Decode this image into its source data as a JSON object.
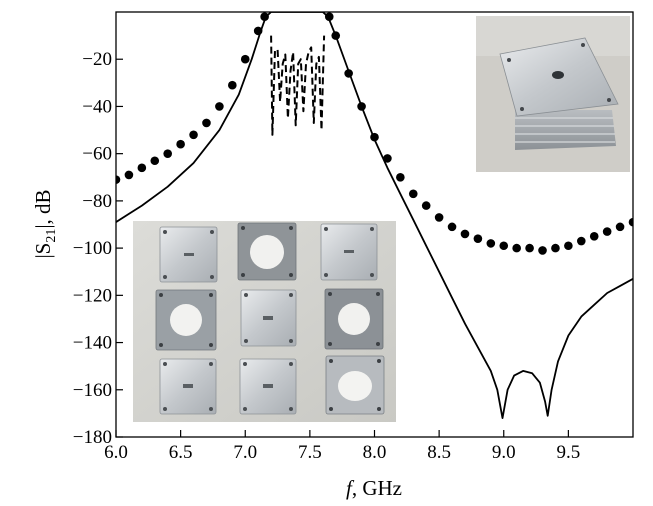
{
  "chart_data": {
    "type": "line",
    "title": "",
    "xlabel": "f, GHz",
    "xlabel_var": "f",
    "xlabel_unit": ", GHz",
    "ylabel": "|S21|, dB",
    "ylabel_pre": "|S",
    "ylabel_sub": "21",
    "ylabel_post": "|, dB",
    "xlim": [
      6.0,
      10.0
    ],
    "ylim": [
      -180,
      0
    ],
    "grid": false,
    "legend": "none",
    "x_ticks": [
      {
        "value": 6.0,
        "label": "6.0"
      },
      {
        "value": 6.5,
        "label": "6.5"
      },
      {
        "value": 7.0,
        "label": "7.0"
      },
      {
        "value": 7.5,
        "label": "7.5"
      },
      {
        "value": 8.0,
        "label": "8.0"
      },
      {
        "value": 8.5,
        "label": "8.5"
      },
      {
        "value": 9.0,
        "label": "9.0"
      },
      {
        "value": 9.5,
        "label": "9.5"
      }
    ],
    "y_ticks": [
      {
        "value": -20,
        "label": "−20"
      },
      {
        "value": -40,
        "label": "−40"
      },
      {
        "value": -60,
        "label": "−60"
      },
      {
        "value": -80,
        "label": "−80"
      },
      {
        "value": -100,
        "label": "−100"
      },
      {
        "value": -120,
        "label": "−120"
      },
      {
        "value": -140,
        "label": "−140"
      },
      {
        "value": -160,
        "label": "−160"
      },
      {
        "value": -180,
        "label": "−180"
      }
    ],
    "series": [
      {
        "style": "solid",
        "color": "#000000",
        "x": [
          6.0,
          6.2,
          6.4,
          6.6,
          6.8,
          6.95,
          7.05,
          7.12,
          7.16,
          7.2,
          7.4,
          7.6,
          7.64,
          7.7,
          7.8,
          7.9,
          8.0,
          8.1,
          8.2,
          8.3,
          8.4,
          8.5,
          8.6,
          8.7,
          8.8,
          8.9,
          8.95,
          8.99,
          9.03,
          9.08,
          9.15,
          9.22,
          9.28,
          9.32,
          9.34,
          9.37,
          9.42,
          9.5,
          9.6,
          9.7,
          9.8,
          9.9,
          10.0
        ],
        "y": [
          -89,
          -82,
          -74,
          -64,
          -50,
          -35,
          -20,
          -8,
          -2,
          0,
          0,
          0,
          -2,
          -10,
          -25,
          -40,
          -54,
          -66,
          -77,
          -88,
          -99,
          -110,
          -121,
          -132,
          -142,
          -152,
          -160,
          -172,
          -160,
          -154,
          -152,
          -153,
          -157,
          -165,
          -171,
          -160,
          -148,
          -137,
          -129,
          -124,
          -119,
          -116,
          -113
        ]
      },
      {
        "style": "dotted",
        "color": "#000000",
        "x": [
          6.0,
          6.1,
          6.2,
          6.3,
          6.4,
          6.5,
          6.6,
          6.7,
          6.8,
          6.9,
          7.0,
          7.1,
          7.15,
          7.65,
          7.7,
          7.8,
          7.9,
          8.0,
          8.1,
          8.2,
          8.3,
          8.4,
          8.5,
          8.6,
          8.7,
          8.8,
          8.9,
          9.0,
          9.1,
          9.2,
          9.3,
          9.4,
          9.5,
          9.6,
          9.7,
          9.8,
          9.9,
          10.0
        ],
        "y": [
          -71,
          -69,
          -66,
          -63,
          -60,
          -56,
          -52,
          -47,
          -40,
          -31,
          -20,
          -8,
          -2,
          -2,
          -10,
          -26,
          -40,
          -53,
          -62,
          -70,
          -77,
          -82,
          -87,
          -91,
          -94,
          -96,
          -98,
          -99,
          -100,
          -100,
          -101,
          -100,
          -99,
          -97,
          -95,
          -93,
          -91,
          -89
        ]
      },
      {
        "style": "dashed",
        "color": "#000000",
        "x": [
          7.2,
          7.21,
          7.23,
          7.25,
          7.27,
          7.29,
          7.31,
          7.33,
          7.35,
          7.37,
          7.39,
          7.41,
          7.43,
          7.45,
          7.47,
          7.49,
          7.51,
          7.53,
          7.55,
          7.57,
          7.59,
          7.61
        ],
        "y": [
          -10,
          -52,
          -16,
          -16,
          -38,
          -22,
          -18,
          -45,
          -25,
          -17,
          -48,
          -22,
          -20,
          -42,
          -22,
          -17,
          -15,
          -47,
          -22,
          -19,
          -50,
          -10
        ]
      }
    ]
  }
}
